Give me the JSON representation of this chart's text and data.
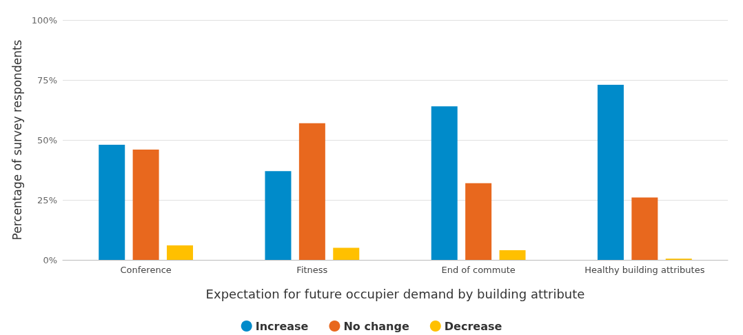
{
  "chart_data": {
    "type": "bar",
    "xlabel": "Expectation for future occupier demand by building attribute",
    "ylabel": "Percentage of survey respondents",
    "categories": [
      "Conference",
      "Fitness",
      "End of commute",
      "Healthy building attributes"
    ],
    "series": [
      {
        "name": "Increase",
        "color": "#008bca",
        "values": [
          48,
          37,
          64,
          73
        ]
      },
      {
        "name": "No change",
        "color": "#e8681e",
        "values": [
          46,
          57,
          32,
          26
        ]
      },
      {
        "name": "Decrease",
        "color": "#ffc000",
        "values": [
          6,
          5,
          4,
          0.5
        ]
      }
    ],
    "ylim": [
      0,
      100
    ],
    "yticks": [
      {
        "value": 0,
        "label": "0%"
      },
      {
        "value": 25,
        "label": "25%"
      },
      {
        "value": 50,
        "label": "50%"
      },
      {
        "value": 75,
        "label": "75%"
      },
      {
        "value": 100,
        "label": "100%"
      }
    ],
    "grid": "y",
    "legend": "bottom"
  }
}
